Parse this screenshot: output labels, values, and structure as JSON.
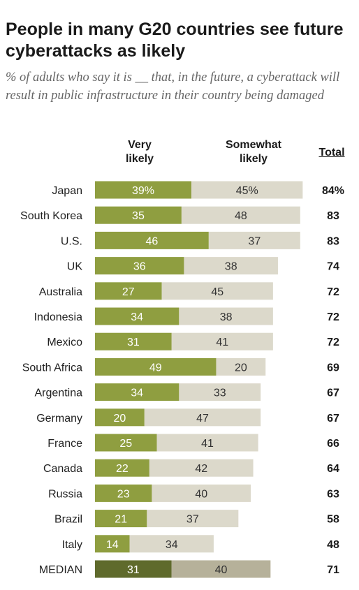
{
  "title": "People in many G20 countries see future cyberattacks as likely",
  "subtitle": "% of adults who say it is __ that, in the future, a cyberattack will result in public infrastructure in their country being damaged",
  "colors": {
    "very_likely": "#8f9e40",
    "somewhat_likely": "#dcd9cb",
    "median_very_likely": "#5f6a2c",
    "median_somewhat_likely": "#b6b19a"
  },
  "chart_data": {
    "type": "bar",
    "orientation": "horizontal",
    "stacked": true,
    "title": "People in many G20 countries see future cyberattacks as likely",
    "subtitle": "% of adults who say it is __ that, in the future, a cyberattack will result in public infrastructure in their country being damaged",
    "categories": [
      "Japan",
      "South Korea",
      "U.S.",
      "UK",
      "Australia",
      "Indonesia",
      "Mexico",
      "South Africa",
      "Argentina",
      "Germany",
      "France",
      "Canada",
      "Russia",
      "Brazil",
      "Italy",
      "MEDIAN"
    ],
    "series": [
      {
        "name": "Very likely",
        "values": [
          39,
          35,
          46,
          36,
          27,
          34,
          31,
          49,
          34,
          20,
          25,
          22,
          23,
          21,
          14,
          31
        ],
        "labels": [
          "39%",
          "35",
          "46",
          "36",
          "27",
          "34",
          "31",
          "49",
          "34",
          "20",
          "25",
          "22",
          "23",
          "21",
          "14",
          "31"
        ]
      },
      {
        "name": "Somewhat likely",
        "values": [
          45,
          48,
          37,
          38,
          45,
          38,
          41,
          20,
          33,
          47,
          41,
          42,
          40,
          37,
          34,
          40
        ],
        "labels": [
          "45%",
          "48",
          "37",
          "38",
          "45",
          "38",
          "41",
          "20",
          "33",
          "47",
          "41",
          "42",
          "40",
          "37",
          "34",
          "40"
        ]
      }
    ],
    "totals": {
      "header": "Total",
      "values": [
        84,
        83,
        83,
        74,
        72,
        72,
        72,
        69,
        67,
        67,
        66,
        64,
        63,
        58,
        48,
        71
      ],
      "labels": [
        "84%",
        "83",
        "83",
        "74",
        "72",
        "72",
        "72",
        "69",
        "67",
        "67",
        "66",
        "64",
        "63",
        "58",
        "48",
        "71"
      ]
    },
    "column_headers": {
      "very_likely": [
        "Very",
        "likely"
      ],
      "somewhat_likely": [
        "Somewhat",
        "likely"
      ]
    },
    "xlim": [
      0,
      84
    ],
    "grid": false,
    "legend": "column headers above bars"
  }
}
